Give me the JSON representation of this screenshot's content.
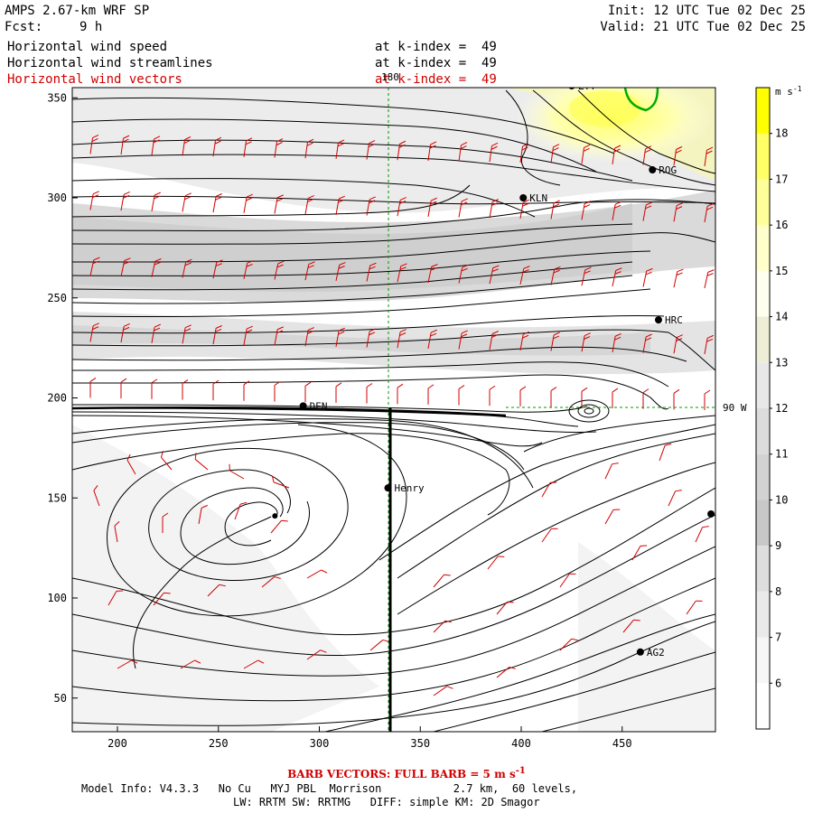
{
  "header": {
    "model": "AMPS 2.67-km WRF SP",
    "fcst_label": "Fcst:",
    "fcst_value": "9 h",
    "init": "Init: 12 UTC Tue 02 Dec 25",
    "valid": "Valid: 21 UTC Tue 02 Dec 25",
    "fields": [
      {
        "name": "Horizontal wind speed",
        "level": "at k-index =  49",
        "color": "#000000"
      },
      {
        "name": "Horizontal wind streamlines",
        "level": "at k-index =  49",
        "color": "#000000"
      },
      {
        "name": "Horizontal wind vectors",
        "level": "at k-index =  49",
        "color": "#d00000"
      }
    ]
  },
  "map": {
    "x_ticks": [
      "200",
      "250",
      "300",
      "350",
      "400",
      "450"
    ],
    "y_ticks": [
      "350",
      "300",
      "250",
      "200",
      "150",
      "100",
      "50"
    ],
    "lon_label": "180",
    "lat_label": "90 W",
    "stations": [
      {
        "name": "LYT",
        "x": 425,
        "y": 356
      },
      {
        "name": "ROG",
        "x": 465,
        "y": 314
      },
      {
        "name": "KLN",
        "x": 401,
        "y": 300
      },
      {
        "name": "HRC",
        "x": 468,
        "y": 239
      },
      {
        "name": "DEN",
        "x": 292,
        "y": 196
      },
      {
        "name": "Henry",
        "x": 334,
        "y": 155
      },
      {
        "name": "AG2",
        "x": 459,
        "y": 73
      },
      {
        "name": "",
        "x": 494,
        "y": 142
      }
    ],
    "cyclone_center": {
      "x": 278,
      "y": 141
    },
    "transect_x": 334
  },
  "colorbar": {
    "unit": "m s-1",
    "unit_base": "m s",
    "unit_exp": "-1",
    "levels": [
      "18",
      "17",
      "16",
      "15",
      "14",
      "13",
      "12",
      "11",
      "10",
      "9",
      "8",
      "7",
      "6"
    ],
    "colors": [
      "#ffff00",
      "#ffff66",
      "#ffff99",
      "#ffffcc",
      "#fffff0",
      "#eeeed6",
      "#e8e8e8",
      "#dcdcdc",
      "#d2d2d2",
      "#c8c8c8",
      "#dedede",
      "#eaeaea",
      "#f6f6f6",
      "#ffffff"
    ]
  },
  "footer": {
    "barb": "BARB VECTORS:  FULL BARB = 5 m s",
    "barb_exp": "-1",
    "model_info": "Model Info: V4.3.3   No Cu   MYJ PBL  Morrison           2.7 km,  60 levels,",
    "model_info2": "LW: RRTM SW: RRTMG   DIFF: simple KM: 2D Smagor"
  }
}
